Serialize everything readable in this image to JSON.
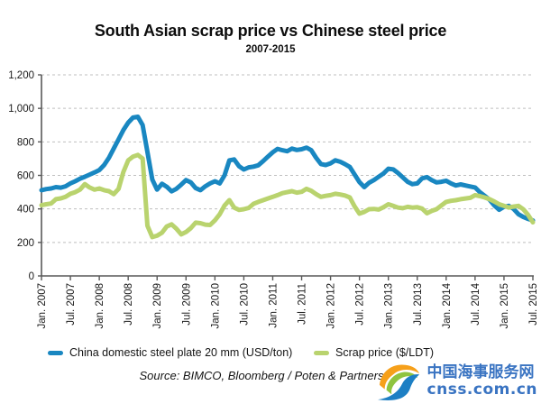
{
  "title": "South Asian scrap price vs Chinese steel price",
  "subtitle": "2007-2015",
  "source_note": "Source: BIMCO, Bloomberg / Poten & Partners",
  "legend": [
    {
      "label": "China domestic steel plate 20 mm (USD/ton)",
      "color": "#1987c1"
    },
    {
      "label": "Scrap price ($/LDT)",
      "color": "#b9d36e"
    }
  ],
  "logo": {
    "text_cn": "中国海事服务网",
    "text_url": "cnss.com.cn",
    "text_color": "#3a74c2",
    "swoosh_colors": [
      "#f6a01a",
      "#8fc43f",
      "#1d7fc4"
    ]
  },
  "chart_data": {
    "type": "line",
    "title": "South Asian scrap price vs Chinese steel price",
    "subtitle": "2007-2015",
    "x_unit": "month",
    "x_start": "Jan. 2007",
    "x_end": "Jul. 2015",
    "x_tick_labels": [
      "Jan. 2007",
      "Jul. 2007",
      "Jan. 2008",
      "Jul. 2008",
      "Jan. 2009",
      "Jul. 2009",
      "Jan. 2010",
      "Jul. 2010",
      "Jan. 2011",
      "Jul. 2011",
      "Jan. 2012",
      "Jul. 2012",
      "Jan. 2013",
      "Jul. 2013",
      "Jan. 2014",
      "Jul. 2014",
      "Jan. 2015",
      "Jul. 2015"
    ],
    "x_ticks_every_n_months": 6,
    "y_axis": {
      "min": 0,
      "max": 1200,
      "tick_step": 200,
      "tick_labels": [
        "0",
        "200",
        "400",
        "600",
        "800",
        "1,000",
        "1,200"
      ]
    },
    "grid": "horizontal-dashed",
    "legend_position": "bottom",
    "series": [
      {
        "name": "China domestic steel plate 20 mm (USD/ton)",
        "color": "#1987c1",
        "values": [
          512,
          518,
          522,
          530,
          527,
          535,
          552,
          565,
          580,
          592,
          605,
          618,
          632,
          662,
          705,
          760,
          815,
          870,
          915,
          945,
          950,
          900,
          740,
          575,
          515,
          550,
          532,
          505,
          520,
          545,
          572,
          558,
          524,
          512,
          535,
          552,
          565,
          552,
          600,
          690,
          695,
          655,
          635,
          648,
          652,
          660,
          685,
          712,
          738,
          758,
          750,
          744,
          760,
          752,
          756,
          766,
          750,
          705,
          668,
          662,
          672,
          690,
          681,
          667,
          650,
          605,
          560,
          530,
          556,
          572,
          592,
          612,
          640,
          636,
          614,
          588,
          562,
          548,
          552,
          582,
          590,
          572,
          558,
          562,
          568,
          552,
          540,
          546,
          540,
          534,
          528,
          500,
          478,
          455,
          420,
          395,
          412,
          418,
          400,
          368,
          352,
          340,
          331
        ]
      },
      {
        "name": "Scrap price ($/LDT)",
        "color": "#b9d36e",
        "values": [
          422,
          428,
          432,
          458,
          463,
          472,
          490,
          500,
          515,
          548,
          528,
          515,
          522,
          512,
          506,
          488,
          520,
          620,
          690,
          712,
          722,
          700,
          300,
          232,
          240,
          258,
          295,
          308,
          282,
          248,
          262,
          285,
          318,
          315,
          306,
          304,
          332,
          368,
          420,
          452,
          408,
          394,
          398,
          406,
          430,
          442,
          452,
          462,
          472,
          482,
          494,
          500,
          506,
          497,
          502,
          520,
          508,
          488,
          472,
          478,
          482,
          490,
          486,
          480,
          468,
          415,
          372,
          382,
          398,
          400,
          396,
          410,
          428,
          418,
          408,
          404,
          412,
          408,
          410,
          402,
          374,
          388,
          398,
          420,
          442,
          448,
          452,
          458,
          462,
          466,
          482,
          476,
          468,
          458,
          444,
          428,
          418,
          408,
          414,
          418,
          398,
          364,
          320
        ]
      }
    ]
  }
}
